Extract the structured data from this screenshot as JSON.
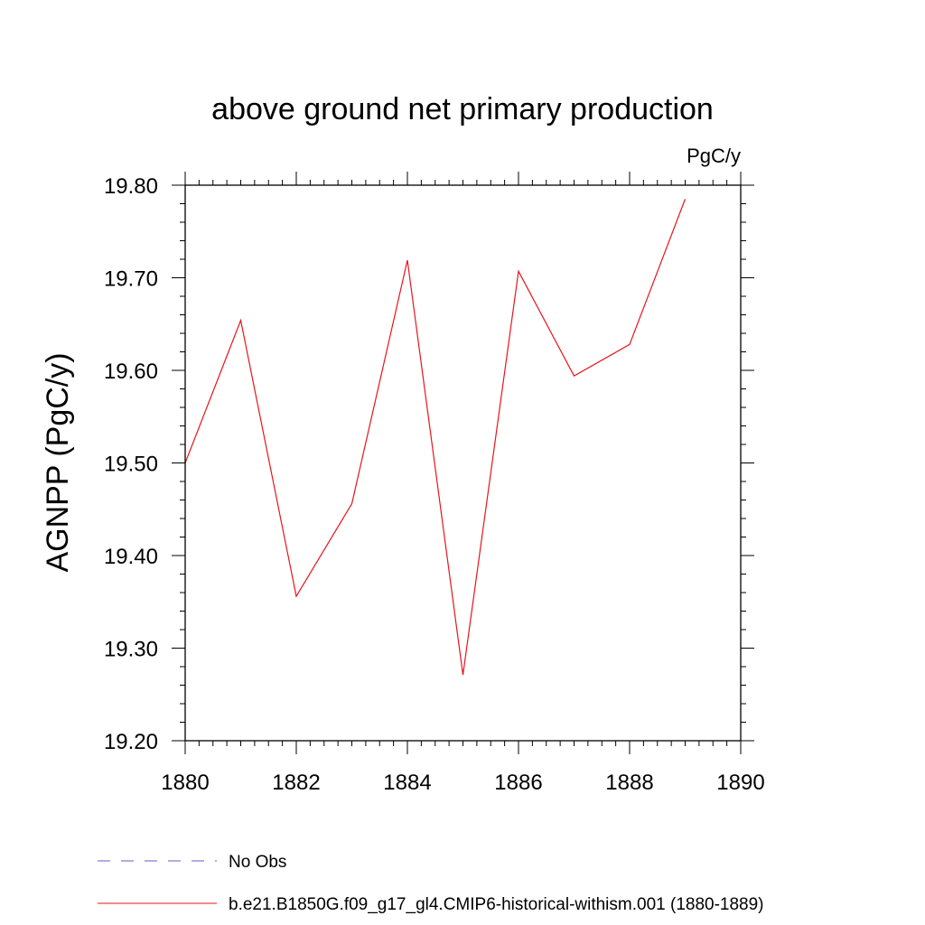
{
  "chart_data": {
    "type": "line",
    "title": "above ground net primary production",
    "units": "PgC/y",
    "xlabel": "",
    "ylabel": "AGNPP  (PgC/y)",
    "xlim": [
      1880,
      1890
    ],
    "ylim": [
      19.2,
      19.8
    ],
    "x_ticks": [
      "1880",
      "1882",
      "1884",
      "1886",
      "1888",
      "1890"
    ],
    "y_ticks": [
      "19.20",
      "19.30",
      "19.40",
      "19.50",
      "19.60",
      "19.70",
      "19.80"
    ],
    "grid": false,
    "legend_placement": "bottom",
    "series": [
      {
        "name": "No Obs",
        "color": "#6a5acd",
        "dash": "dashed",
        "x": [],
        "values": []
      },
      {
        "name": "b.e21.B1850G.f09_g17_gl4.CMIP6-historical-withism.001 (1880-1889)",
        "color": "#e8141c",
        "dash": "solid",
        "x": [
          1880,
          1881,
          1882,
          1883,
          1884,
          1885,
          1886,
          1887,
          1888,
          1889
        ],
        "values": [
          19.5,
          19.654,
          19.356,
          19.456,
          19.719,
          19.271,
          19.707,
          19.594,
          19.628,
          19.785
        ]
      }
    ]
  }
}
